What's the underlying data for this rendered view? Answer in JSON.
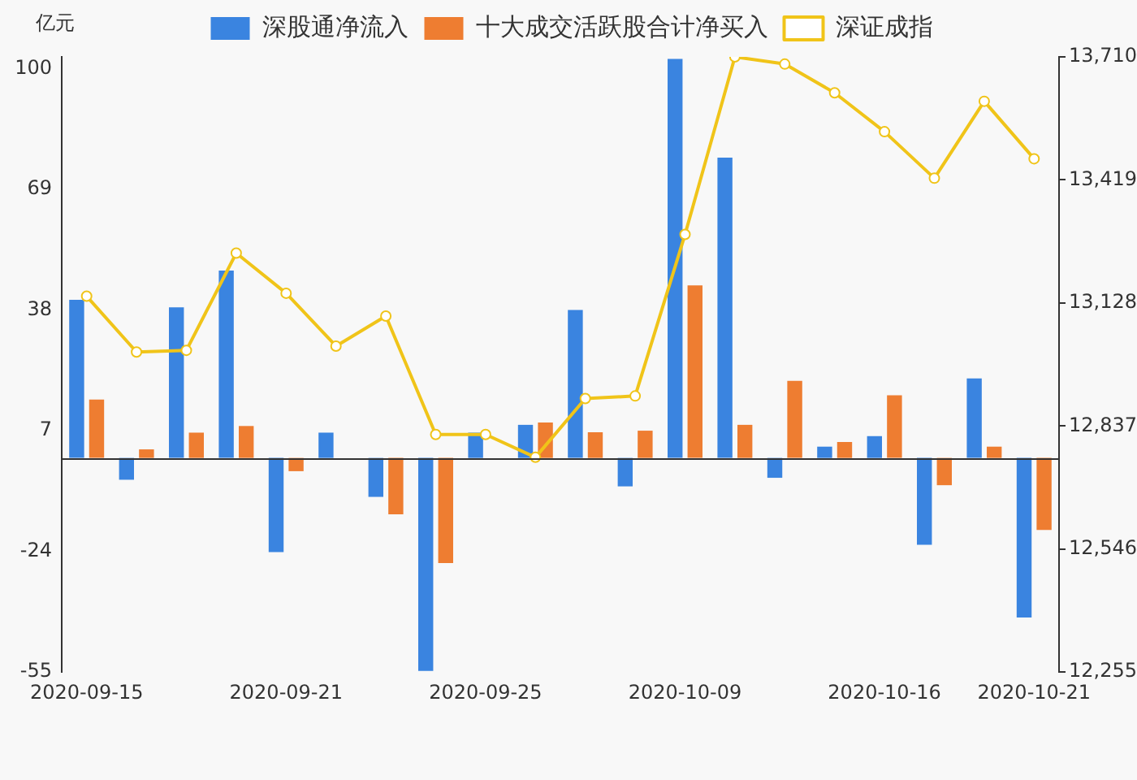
{
  "chart_data": {
    "type": "bar",
    "ylabel": "亿元",
    "categories": [
      "2020-09-15",
      null,
      null,
      null,
      "2020-09-21",
      null,
      null,
      null,
      "2020-09-25",
      null,
      null,
      null,
      "2020-10-09",
      null,
      null,
      null,
      "2020-10-16",
      null,
      null,
      "2020-10-21"
    ],
    "series": [
      {
        "name": "深股通净流入",
        "color": "#3a84e0",
        "values": [
          40.6,
          -5.6,
          38.7,
          48.1,
          -24.2,
          6.5,
          -10.0,
          -54.7,
          6.5,
          8.5,
          38,
          -7.3,
          102.5,
          77.1,
          -5.1,
          2.9,
          5.6,
          -22.3,
          20.4,
          -41.0
        ]
      },
      {
        "name": "十大成交活跃股合计净买入",
        "color": "#ee7d31",
        "values": [
          15.0,
          2.2,
          6.5,
          8.2,
          -3.4,
          0,
          -14.5,
          -27.0,
          0,
          9.1,
          6.6,
          7.0,
          44.3,
          8.5,
          19.8,
          4.1,
          16.1,
          -7.0,
          2.9,
          -18.5
        ]
      },
      {
        "name": "深证成指",
        "type": "line",
        "axis": "y2",
        "color": "#f0c419",
        "marker": "circle",
        "values": [
          13144,
          13012,
          13016,
          13246,
          13151,
          13026,
          13097,
          12817,
          12817,
          12763,
          12902,
          12908,
          13290,
          13710,
          13693,
          13625,
          13533,
          13423,
          13605,
          13469
        ]
      }
    ],
    "ylim": [
      -55,
      103
    ],
    "yticks": [
      -55,
      -24,
      7,
      38,
      69,
      100
    ],
    "y2lim": [
      12255,
      13710
    ],
    "y2ticks": [
      {
        "value": 12255,
        "label": "12,255"
      },
      {
        "value": 12546,
        "label": "12,546"
      },
      {
        "value": 12837,
        "label": "12,837"
      },
      {
        "value": 13128,
        "label": "13,128"
      },
      {
        "value": 13419,
        "label": "13,419"
      },
      {
        "value": 13710,
        "label": "13,710"
      }
    ],
    "grid": false,
    "legend": "top"
  }
}
